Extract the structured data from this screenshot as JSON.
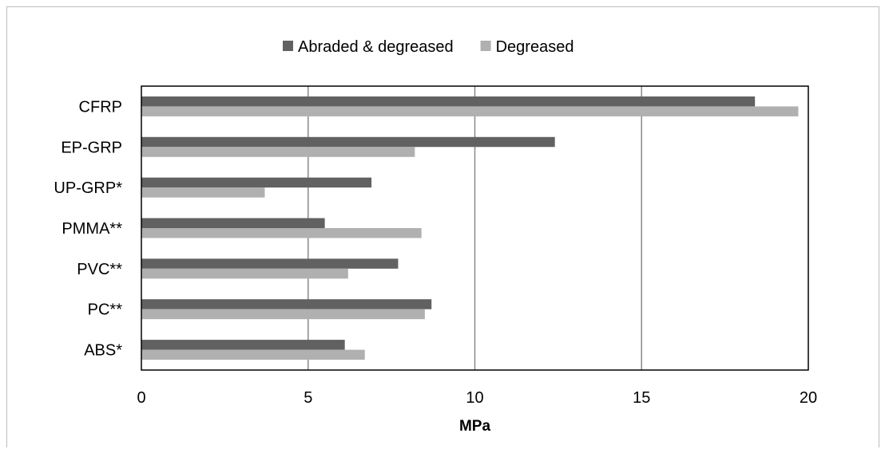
{
  "chart_data": {
    "type": "bar",
    "orientation": "horizontal",
    "title": "",
    "xlabel": "MPa",
    "ylabel": "",
    "xlim": [
      0,
      20
    ],
    "x_ticks": [
      "0",
      "5",
      "10",
      "15",
      "20"
    ],
    "grid": "vertical major gridlines",
    "legend_position": "top",
    "categories": [
      "CFRP",
      "EP-GRP",
      "UP-GRP*",
      "PMMA**",
      "PVC**",
      "PC**",
      "ABS*"
    ],
    "series": [
      {
        "name": "Abraded & degreased",
        "color": "#616161",
        "values": [
          18.4,
          12.4,
          6.9,
          5.5,
          7.7,
          8.7,
          6.1
        ]
      },
      {
        "name": "Degreased",
        "color": "#b0b0b0",
        "values": [
          19.7,
          8.2,
          3.7,
          8.4,
          6.2,
          8.5,
          6.7
        ]
      }
    ]
  }
}
